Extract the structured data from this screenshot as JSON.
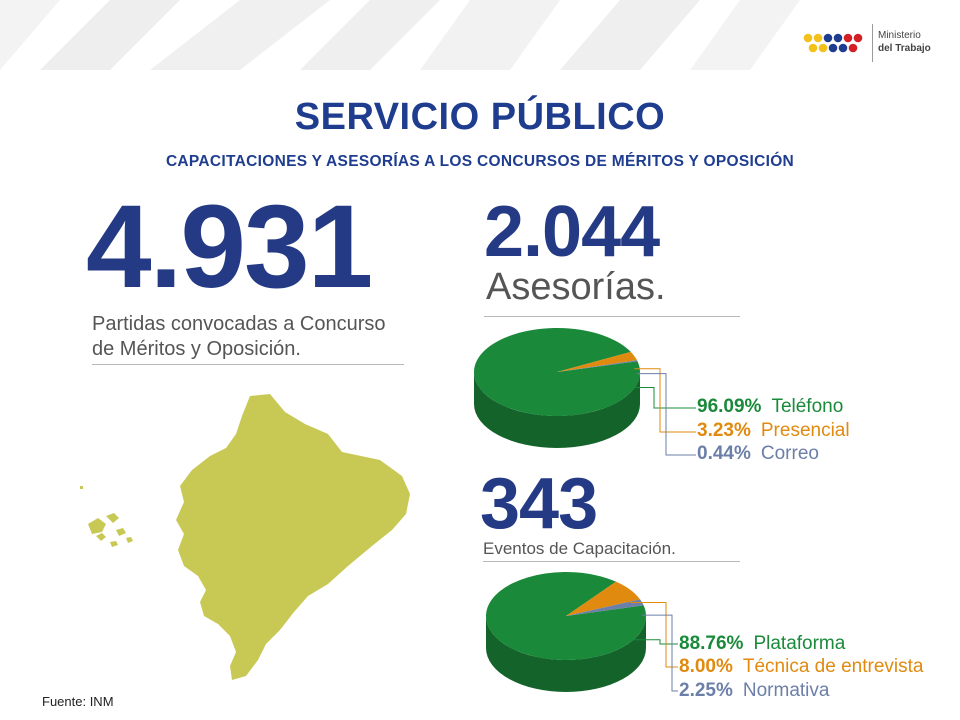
{
  "header": {
    "logo_line1": "Ministerio",
    "logo_line2": "del Trabajo",
    "logo_dot_colors": [
      "#f4c11b",
      "#f4c11b",
      "#1f3d8f",
      "#1f3d8f",
      "#d32027",
      "#d32027"
    ]
  },
  "title": "SERVICIO PÚBLICO",
  "subtitle": "CAPACITACIONES Y ASESORÍAS A LOS CONCURSOS DE MÉRITOS Y OPOSICIÓN",
  "partidas": {
    "number": "4.931",
    "line1": "Partidas convocadas a Concurso",
    "line2": "de Méritos y Oposición."
  },
  "asesorias": {
    "number": "2.044",
    "label": "Asesorías."
  },
  "eventos": {
    "number": "343",
    "label": "Eventos de Capacitación."
  },
  "colors": {
    "title_blue": "#1f3d8f",
    "green": "#1a8a3a",
    "orange": "#e08a0f",
    "slate": "#6b7fa8",
    "map": "#c8c855"
  },
  "chart_data": [
    {
      "type": "pie",
      "categories": [
        "Teléfono",
        "Presencial",
        "Correo"
      ],
      "values": [
        96.09,
        3.23,
        0.44
      ],
      "value_labels": [
        "96.09%",
        "3.23%",
        "0.44%"
      ],
      "colors": [
        "#1a8a3a",
        "#e08a0f",
        "#6b7fa8"
      ]
    },
    {
      "type": "pie",
      "categories": [
        "Plataforma",
        "Técnica de entrevista",
        "Normativa"
      ],
      "values": [
        88.76,
        8.0,
        2.25
      ],
      "value_labels": [
        "88.76%",
        "8.00%",
        "2.25%"
      ],
      "colors": [
        "#1a8a3a",
        "#e08a0f",
        "#6b7fa8"
      ]
    }
  ],
  "footer": {
    "source": "Fuente: INM"
  }
}
